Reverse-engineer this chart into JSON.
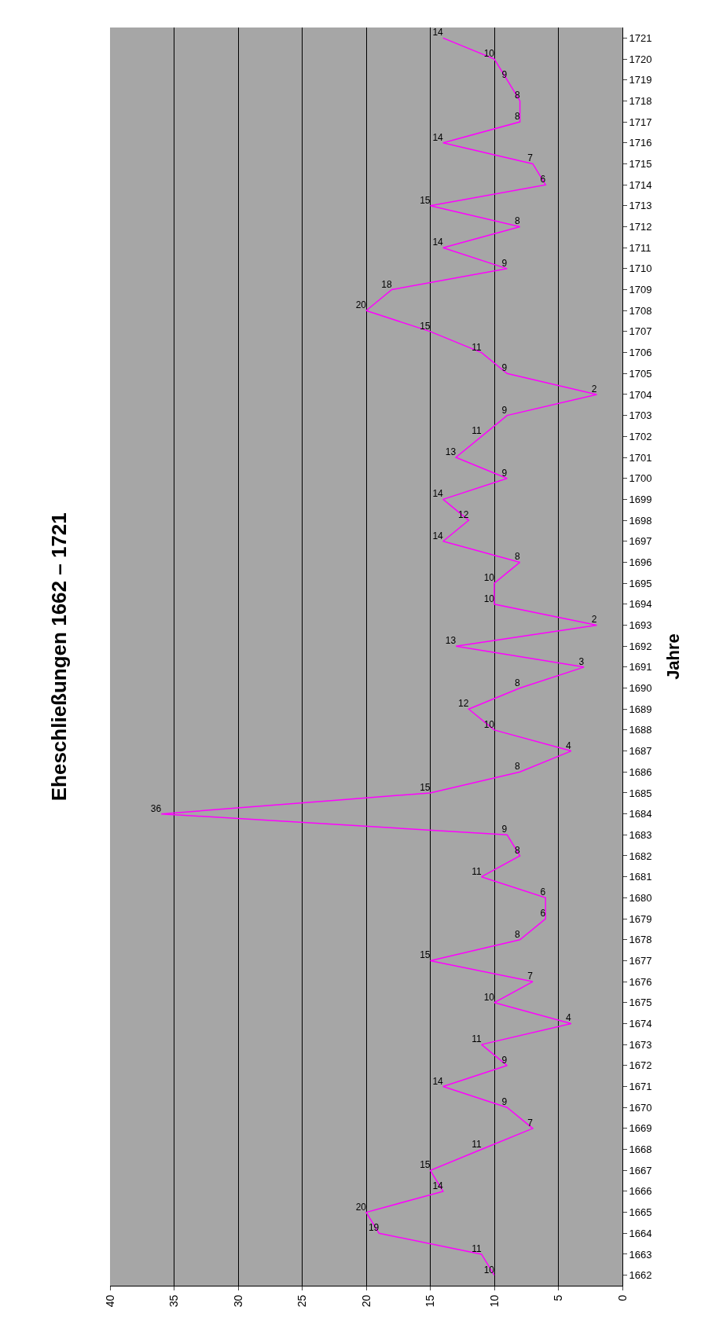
{
  "chart_data": {
    "type": "line",
    "orientation": "horizontal",
    "title": "Eheschließungen 1662 – 1721",
    "ylabel": "Jahre",
    "categories": [
      "1721",
      "1720",
      "1719",
      "1718",
      "1717",
      "1716",
      "1715",
      "1714",
      "1713",
      "1712",
      "1711",
      "1710",
      "1709",
      "1708",
      "1707",
      "1706",
      "1705",
      "1704",
      "1703",
      "1702",
      "1701",
      "1700",
      "1699",
      "1698",
      "1697",
      "1696",
      "1695",
      "1694",
      "1693",
      "1692",
      "1691",
      "1690",
      "1689",
      "1688",
      "1687",
      "1686",
      "1685",
      "1684",
      "1683",
      "1682",
      "1681",
      "1680",
      "1679",
      "1678",
      "1677",
      "1676",
      "1675",
      "1674",
      "1673",
      "1672",
      "1671",
      "1670",
      "1669",
      "1668",
      "1667",
      "1666",
      "1665",
      "1664",
      "1663",
      "1662"
    ],
    "series": [
      {
        "color": "#ff00ff",
        "values": [
          14,
          10,
          9,
          8,
          8,
          14,
          7,
          6,
          15,
          8,
          14,
          9,
          18,
          20,
          15,
          11,
          9,
          2,
          9,
          11,
          13,
          9,
          14,
          12,
          14,
          8,
          10,
          10,
          2,
          13,
          3,
          8,
          12,
          10,
          4,
          8,
          15,
          36,
          9,
          8,
          11,
          6,
          6,
          8,
          15,
          7,
          10,
          4,
          11,
          9,
          14,
          9,
          7,
          11,
          15,
          14,
          20,
          19,
          11,
          10
        ]
      }
    ],
    "xlim": [
      40,
      0
    ],
    "xticks": [
      0,
      5,
      10,
      15,
      20,
      25,
      30,
      35,
      40
    ],
    "grid": "x",
    "data_labels": true,
    "marker": "none",
    "line_style": "solid"
  }
}
